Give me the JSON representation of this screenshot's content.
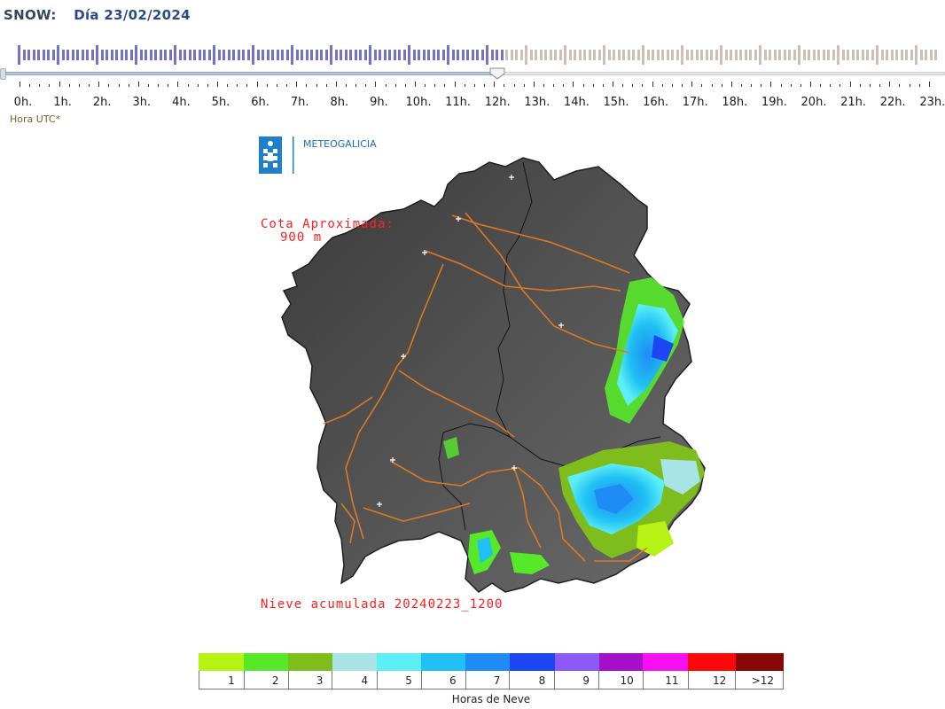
{
  "header": {
    "variable": "SNOW:",
    "date": "Día 23/02/2024"
  },
  "timeline": {
    "hours": [
      "0h.",
      "1h.",
      "2h.",
      "3h.",
      "4h.",
      "5h.",
      "6h.",
      "7h.",
      "8h.",
      "9h.",
      "10h.",
      "11h.",
      "12h.",
      "13h.",
      "14h.",
      "15h.",
      "16h.",
      "17h.",
      "18h.",
      "19h.",
      "20h.",
      "21h.",
      "22h.",
      "23h."
    ],
    "selected_hour": "12h.",
    "progress_fraction": 0.53,
    "played_color": "#7272cc",
    "pending_color": "#cdbfb4",
    "timezone_label": "Hora UTC*"
  },
  "map": {
    "logo_text": "METEOGALICIA",
    "annotation_line1": "Cota Aproximada:",
    "annotation_line2": "900 m",
    "footer": "Nieve acumulada 20240223_1200",
    "annotation_color": "#ff2020",
    "road_color": "#e07820"
  },
  "legend": {
    "title": "Horas de Neve",
    "classes": [
      {
        "label": "1",
        "color": "#b6f213"
      },
      {
        "label": "2",
        "color": "#56e92a"
      },
      {
        "label": "3",
        "color": "#7fbd1c"
      },
      {
        "label": "4",
        "color": "#a8e3e6"
      },
      {
        "label": "5",
        "color": "#5cf0f6"
      },
      {
        "label": "6",
        "color": "#20bff4"
      },
      {
        "label": "7",
        "color": "#1f8cf5"
      },
      {
        "label": "8",
        "color": "#1b46f2"
      },
      {
        "label": "9",
        "color": "#8d59f4"
      },
      {
        "label": "10",
        "color": "#a50fc7"
      },
      {
        "label": "11",
        "color": "#f60ff0"
      },
      {
        "label": "12",
        "color": "#fb0808"
      },
      {
        "label": ">12",
        "color": "#870707"
      }
    ]
  }
}
